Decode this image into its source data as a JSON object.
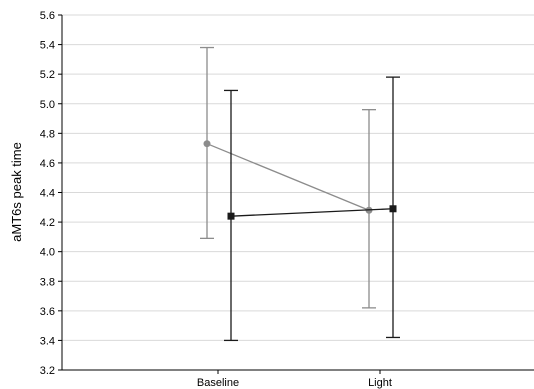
{
  "chart_data": {
    "type": "line",
    "title": "",
    "xlabel": "",
    "ylabel": "aMT6s peak time",
    "categories": [
      "Baseline",
      "Light"
    ],
    "ylim": [
      3.2,
      5.6
    ],
    "yticks": [
      "3.2",
      "3.4",
      "3.6",
      "3.8",
      "4.0",
      "4.2",
      "4.4",
      "4.6",
      "4.8",
      "5.0",
      "5.2",
      "5.4",
      "5.6"
    ],
    "grid": true,
    "legend": "none",
    "series": [
      {
        "color": "#8c8c8c",
        "marker": "circle",
        "values": [
          4.73,
          4.28
        ],
        "error_low": [
          4.09,
          3.62
        ],
        "error_high": [
          5.38,
          4.96
        ]
      },
      {
        "color": "#1a1a1a",
        "marker": "square",
        "values": [
          4.24,
          4.29
        ],
        "error_low": [
          3.4,
          3.42
        ],
        "error_high": [
          5.09,
          5.18
        ]
      }
    ]
  }
}
